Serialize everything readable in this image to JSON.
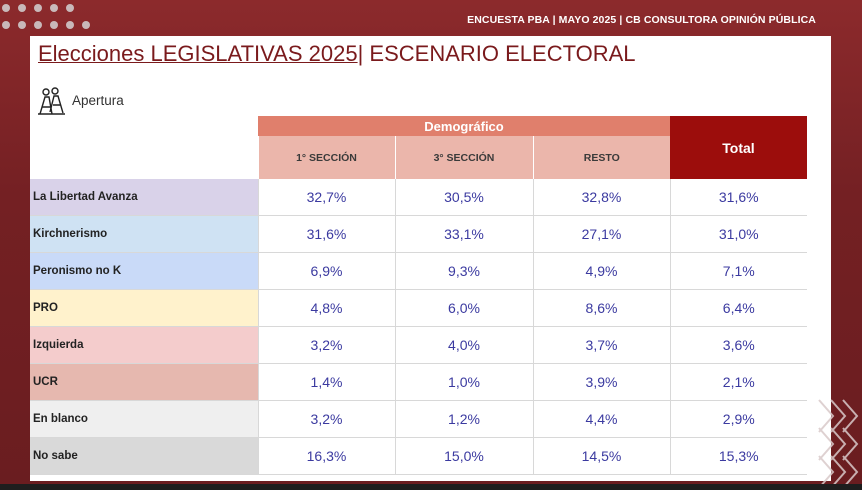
{
  "header": {
    "source": "ENCUESTA PBA | MAYO 2025 | CB CONSULTORA OPINIÓN PÚBLICA"
  },
  "title": {
    "underlined": "Elecciones LEGISLATIVAS 2025",
    "rest": "| ESCENARIO ELECTORAL"
  },
  "section": {
    "label": "Apertura",
    "icon": "people-group-icon"
  },
  "table": {
    "group_header": "Demográfico",
    "columns": [
      "1° SECCIÓN",
      "3° SECCIÓN",
      "RESTO"
    ],
    "total_header": "Total",
    "rows": [
      {
        "label": "La Libertad Avanza",
        "values": [
          "32,7%",
          "30,5%",
          "32,8%"
        ],
        "total": "31,6%",
        "color": "#d9d2e9"
      },
      {
        "label": "Kirchnerismo",
        "values": [
          "31,6%",
          "33,1%",
          "27,1%"
        ],
        "total": "31,0%",
        "color": "#cfe2f3"
      },
      {
        "label": "Peronismo no K",
        "values": [
          "6,9%",
          "9,3%",
          "4,9%"
        ],
        "total": "7,1%",
        "color": "#c9daf8"
      },
      {
        "label": "PRO",
        "values": [
          "4,8%",
          "6,0%",
          "8,6%"
        ],
        "total": "6,4%",
        "color": "#fff2cc"
      },
      {
        "label": "Izquierda",
        "values": [
          "3,2%",
          "4,0%",
          "3,7%"
        ],
        "total": "3,6%",
        "color": "#f4cccc"
      },
      {
        "label": "UCR",
        "values": [
          "1,4%",
          "1,0%",
          "3,9%"
        ],
        "total": "2,1%",
        "color": "#e6b8af"
      },
      {
        "label": "En blanco",
        "values": [
          "3,2%",
          "1,2%",
          "4,4%"
        ],
        "total": "2,9%",
        "color": "#efefef"
      },
      {
        "label": "No sabe",
        "values": [
          "16,3%",
          "15,0%",
          "14,5%"
        ],
        "total": "15,3%",
        "color": "#d9d9d9"
      }
    ]
  },
  "colors": {
    "background": "#7a2124",
    "demographic_header": "#e07f6c",
    "subheader": "#ebb6ab",
    "total_header": "#9c0d0c",
    "value_text": "#3b3aa0"
  }
}
